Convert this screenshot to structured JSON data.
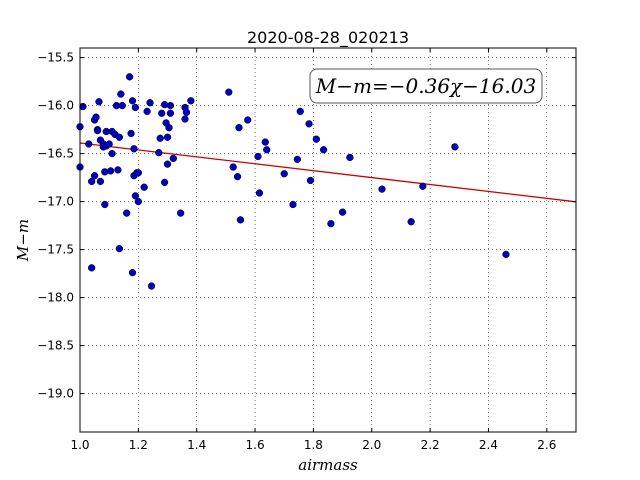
{
  "chart_data": {
    "type": "scatter",
    "title": "2020-08-28_020213",
    "xlabel": "airmass",
    "ylabel": "M−m",
    "xlim": [
      1.0,
      2.7
    ],
    "ylim": [
      -15.4,
      -19.4
    ],
    "xticks": [
      1.0,
      1.2,
      1.4,
      1.6,
      1.8,
      2.0,
      2.2,
      2.4,
      2.6
    ],
    "xtick_labels": [
      "1.0",
      "1.2",
      "1.4",
      "1.6",
      "1.8",
      "2.0",
      "2.2",
      "2.4",
      "2.6"
    ],
    "yticks": [
      -15.5,
      -16.0,
      -16.5,
      -17.0,
      -17.5,
      -18.0,
      -18.5,
      -19.0
    ],
    "ytick_labels": [
      "−15.5",
      "−16.0",
      "−16.5",
      "−17.0",
      "−17.5",
      "−18.0",
      "−18.5",
      "−19.0"
    ],
    "grid": true,
    "fit": {
      "slope": -0.36,
      "intercept": -16.03,
      "color": "#cc0000"
    },
    "annotation": "M−m=−0.36χ−16.03",
    "point_color": "#0000bb",
    "points": [
      [
        1.0,
        -16.22
      ],
      [
        1.0,
        -16.64
      ],
      [
        1.01,
        -16.01
      ],
      [
        1.03,
        -16.4
      ],
      [
        1.04,
        -16.79
      ],
      [
        1.04,
        -17.69
      ],
      [
        1.05,
        -16.73
      ],
      [
        1.05,
        -16.15
      ],
      [
        1.055,
        -16.12
      ],
      [
        1.06,
        -16.25
      ],
      [
        1.06,
        -16.26
      ],
      [
        1.065,
        -15.96
      ],
      [
        1.07,
        -16.36
      ],
      [
        1.07,
        -16.79
      ],
      [
        1.08,
        -16.43
      ],
      [
        1.08,
        -16.4
      ],
      [
        1.085,
        -16.69
      ],
      [
        1.085,
        -17.03
      ],
      [
        1.09,
        -16.27
      ],
      [
        1.09,
        -16.42
      ],
      [
        1.1,
        -16.4
      ],
      [
        1.105,
        -16.68
      ],
      [
        1.11,
        -16.5
      ],
      [
        1.11,
        -16.27
      ],
      [
        1.12,
        -16.3
      ],
      [
        1.125,
        -16.0
      ],
      [
        1.13,
        -16.67
      ],
      [
        1.135,
        -16.33
      ],
      [
        1.135,
        -17.49
      ],
      [
        1.14,
        -15.88
      ],
      [
        1.145,
        -16.0
      ],
      [
        1.16,
        -17.12
      ],
      [
        1.17,
        -15.7
      ],
      [
        1.175,
        -16.29
      ],
      [
        1.18,
        -15.95
      ],
      [
        1.18,
        -17.74
      ],
      [
        1.185,
        -16.45
      ],
      [
        1.185,
        -16.73
      ],
      [
        1.19,
        -16.02
      ],
      [
        1.19,
        -16.94
      ],
      [
        1.195,
        -16.7
      ],
      [
        1.2,
        -16.7
      ],
      [
        1.2,
        -17.0
      ],
      [
        1.22,
        -16.85
      ],
      [
        1.23,
        -16.06
      ],
      [
        1.24,
        -15.97
      ],
      [
        1.245,
        -17.88
      ],
      [
        1.27,
        -16.49
      ],
      [
        1.275,
        -16.34
      ],
      [
        1.28,
        -16.08
      ],
      [
        1.29,
        -16.8
      ],
      [
        1.29,
        -15.99
      ],
      [
        1.295,
        -16.18
      ],
      [
        1.3,
        -16.33
      ],
      [
        1.3,
        -16.61
      ],
      [
        1.305,
        -16.23
      ],
      [
        1.31,
        -16.08
      ],
      [
        1.31,
        -16.0
      ],
      [
        1.32,
        -16.55
      ],
      [
        1.345,
        -17.12
      ],
      [
        1.36,
        -16.14
      ],
      [
        1.36,
        -16.02
      ],
      [
        1.365,
        -16.07
      ],
      [
        1.38,
        -15.95
      ],
      [
        1.51,
        -15.86
      ],
      [
        1.525,
        -16.64
      ],
      [
        1.54,
        -16.74
      ],
      [
        1.545,
        -16.23
      ],
      [
        1.55,
        -17.19
      ],
      [
        1.575,
        -16.15
      ],
      [
        1.61,
        -16.53
      ],
      [
        1.615,
        -16.91
      ],
      [
        1.635,
        -16.38
      ],
      [
        1.64,
        -16.46
      ],
      [
        1.7,
        -16.71
      ],
      [
        1.73,
        -17.03
      ],
      [
        1.745,
        -16.56
      ],
      [
        1.755,
        -16.06
      ],
      [
        1.785,
        -16.19
      ],
      [
        1.79,
        -16.78
      ],
      [
        1.81,
        -16.35
      ],
      [
        1.835,
        -16.46
      ],
      [
        1.86,
        -17.23
      ],
      [
        1.9,
        -17.11
      ],
      [
        1.925,
        -16.54
      ],
      [
        2.035,
        -16.87
      ],
      [
        2.135,
        -17.21
      ],
      [
        2.175,
        -16.84
      ],
      [
        2.285,
        -16.43
      ],
      [
        2.46,
        -17.55
      ]
    ]
  }
}
